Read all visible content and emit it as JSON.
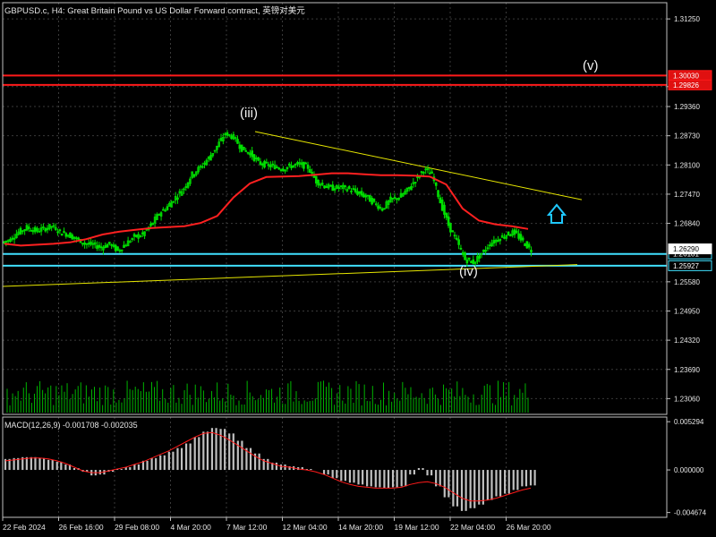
{
  "header": {
    "title": "GBPUSD.c, H4:  Great Britain Pound vs US Dollar Forward contract, 英镑对美元",
    "macd_label": "MACD(12,26,9) -0.001708 -0.002035"
  },
  "colors": {
    "background": "#000000",
    "grid": "#3a3a3a",
    "candles": "#00e000",
    "ma": "#ff2020",
    "trendline": "#e6e600",
    "support": "#40e0ff",
    "resistance": "#ff1a1a",
    "macd_hist": "#c0c0c0",
    "macd_signal": "#ff1a1a",
    "arrow": "#1fc8ff"
  },
  "chart_data": [
    {
      "type": "candlestick",
      "symbol": "GBPUSD.c",
      "timeframe": "H4",
      "y_axis_ticks": [
        "1.31250",
        "1.29790",
        "1.29360",
        "1.28730",
        "1.28100",
        "1.27470",
        "1.26840",
        "1.25580",
        "1.24950",
        "1.24320",
        "1.23690",
        "1.23060"
      ],
      "ylim": [
        1.2272,
        1.316
      ],
      "x_axis_ticks": [
        "22 Feb 2024",
        "26 Feb 16:00",
        "29 Feb 08:00",
        "4 Mar 20:00",
        "7 Mar 12:00",
        "12 Mar 04:00",
        "14 Mar 20:00",
        "19 Mar 12:00",
        "22 Mar 04:00",
        "26 Mar 20:00"
      ],
      "close_series": [
        1.265,
        1.2665,
        1.2675,
        1.2668,
        1.2672,
        1.2678,
        1.2665,
        1.266,
        1.265,
        1.264,
        1.2638,
        1.2632,
        1.264,
        1.2625,
        1.264,
        1.2655,
        1.266,
        1.268,
        1.2705,
        1.272,
        1.274,
        1.276,
        1.279,
        1.2805,
        1.2825,
        1.285,
        1.2878,
        1.287,
        1.2845,
        1.2835,
        1.2815,
        1.281,
        1.2806,
        1.2802,
        1.2808,
        1.2812,
        1.2805,
        1.2775,
        1.2765,
        1.276,
        1.2762,
        1.2758,
        1.275,
        1.2742,
        1.2728,
        1.2715,
        1.2735,
        1.274,
        1.2755,
        1.2778,
        1.28,
        1.279,
        1.273,
        1.268,
        1.2645,
        1.2606,
        1.26,
        1.2618,
        1.264,
        1.265,
        1.266,
        1.2665,
        1.2645,
        1.2626
      ],
      "current_price_tag": "1.26290",
      "wave_labels": [
        "(iii)",
        "(iv)",
        "(v)"
      ],
      "price_tags": [
        {
          "label": "1.30030",
          "kind": "resistance"
        },
        {
          "label": "1.29826",
          "kind": "resistance"
        },
        {
          "label": "1.26181",
          "kind": "support"
        },
        {
          "label": "1.25927",
          "kind": "support"
        }
      ],
      "indicators": {
        "moving_average": [
          1.264,
          1.2636,
          1.2638,
          1.264,
          1.2643,
          1.265,
          1.266,
          1.2666,
          1.267,
          1.2674,
          1.2676,
          1.2678,
          1.2685,
          1.27,
          1.274,
          1.277,
          1.2784,
          1.2785,
          1.2786,
          1.2789,
          1.2792,
          1.2792,
          1.279,
          1.2788,
          1.2788,
          1.2787,
          1.2785,
          1.2768,
          1.2716,
          1.269,
          1.2682,
          1.2678,
          1.2672
        ],
        "trendlines": [
          "upper descending line from (iii) high",
          "lower ascending support line"
        ]
      }
    },
    {
      "type": "bar",
      "name": "MACD(12,26,9)",
      "y_axis_ticks": [
        "0.005294",
        "0.000000",
        "-0.004674"
      ],
      "ylim": [
        -0.0052,
        0.0058
      ],
      "histogram": [
        0.0012,
        0.0013,
        0.0014,
        0.0014,
        0.0013,
        0.0011,
        0.0009,
        0.0006,
        0.0002,
        -0.0002,
        -0.0006,
        -0.0005,
        -0.0002,
        0.0001,
        0.0003,
        0.0006,
        0.001,
        0.0013,
        0.0016,
        0.002,
        0.0024,
        0.0029,
        0.0036,
        0.0042,
        0.0046,
        0.0045,
        0.004,
        0.0032,
        0.0024,
        0.0018,
        0.0012,
        0.0008,
        0.0006,
        0.0004,
        0.0003,
        0.0001,
        0.0,
        -0.0005,
        -0.0009,
        -0.0012,
        -0.0014,
        -0.0016,
        -0.0018,
        -0.0019,
        -0.002,
        -0.0019,
        -0.0018,
        -0.0005,
        0.0002,
        -0.0006,
        -0.0018,
        -0.003,
        -0.004,
        -0.0045,
        -0.0042,
        -0.0038,
        -0.0033,
        -0.0029,
        -0.0026,
        -0.0022,
        -0.0018,
        -0.0017
      ],
      "signal": [
        0.001,
        0.0011,
        0.0012,
        0.0013,
        0.0013,
        0.0012,
        0.001,
        0.0007,
        0.0003,
        -0.0001,
        -0.0003,
        -0.0003,
        -0.0001,
        0.0001,
        0.0003,
        0.0006,
        0.0009,
        0.0013,
        0.0017,
        0.0021,
        0.0026,
        0.0031,
        0.0036,
        0.004,
        0.0041,
        0.0038,
        0.0033,
        0.0027,
        0.0021,
        0.0015,
        0.001,
        0.0007,
        0.0004,
        0.0003,
        0.0001,
        0.0,
        -0.0002,
        -0.0005,
        -0.0009,
        -0.0013,
        -0.0016,
        -0.0018,
        -0.0019,
        -0.002,
        -0.002,
        -0.002,
        -0.0019,
        -0.0016,
        -0.0014,
        -0.0013,
        -0.0015,
        -0.0019,
        -0.0025,
        -0.0031,
        -0.0034,
        -0.0034,
        -0.0033,
        -0.0031,
        -0.0028,
        -0.0025,
        -0.0022,
        -0.002
      ]
    }
  ]
}
